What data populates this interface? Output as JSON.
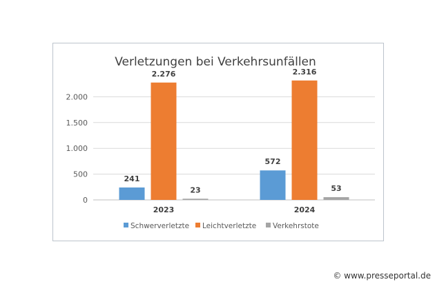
{
  "watermark": "© www.presseportal.de",
  "chart_data": {
    "type": "bar",
    "title": "Verletzungen bei Verkehrsunfällen",
    "categories": [
      "2023",
      "2024"
    ],
    "series": [
      {
        "name": "Schwerverletzte",
        "values": [
          241,
          572
        ],
        "labels": [
          "241",
          "572"
        ],
        "color": "#5b9bd5"
      },
      {
        "name": "Leichtverletzte",
        "values": [
          2276,
          2316
        ],
        "labels": [
          "2.276",
          "2.316"
        ],
        "color": "#ed7d31"
      },
      {
        "name": "Verkehrstote",
        "values": [
          23,
          53
        ],
        "labels": [
          "23",
          "53"
        ],
        "color": "#a5a5a5"
      }
    ],
    "ylim": [
      0,
      2500
    ],
    "yticks": [
      0,
      500,
      1000,
      1500,
      2000
    ],
    "ytick_labels": [
      "0",
      "500",
      "1.000",
      "1.500",
      "2.000"
    ],
    "grid": true,
    "legend_position": "bottom"
  }
}
